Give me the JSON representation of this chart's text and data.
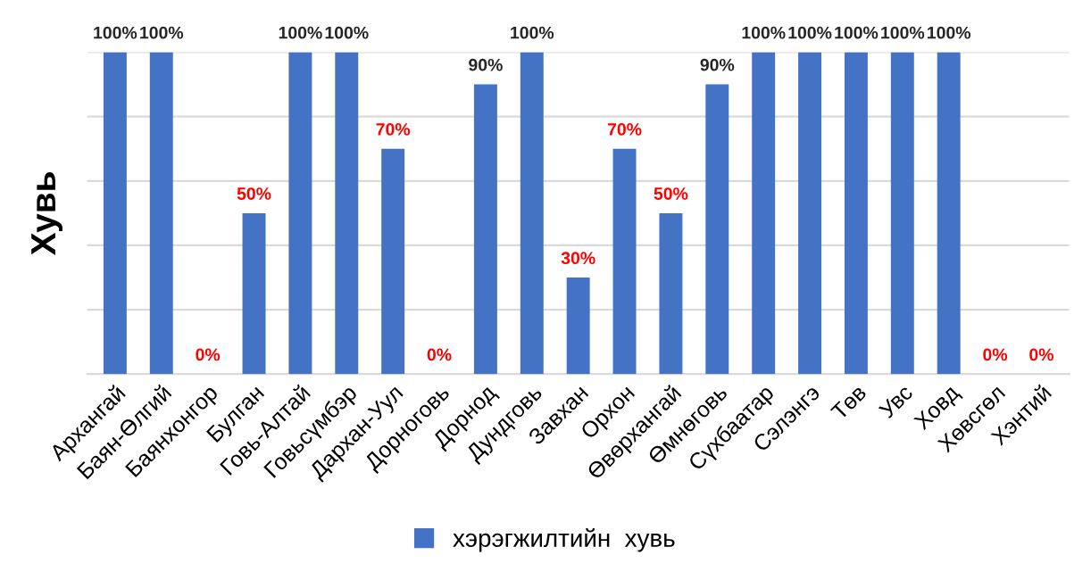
{
  "chart_data": {
    "type": "bar",
    "ylabel": "Хувь",
    "categories": [
      "Архангай",
      "Баян-Өлгий",
      "Баянхонгор",
      "Булган",
      "Говь-Алтай",
      "Говьсүмбэр",
      "Дархан-Уул",
      "Дорноговь",
      "Дорнод",
      "Дундговь",
      "Завхан",
      "Орхон",
      "Өвөрхангай",
      "Өмнөговь",
      "Сүхбаатар",
      "Сэлэнгэ",
      "Төв",
      "Увс",
      "Ховд",
      "Хөвсгөл",
      "Хэнтий"
    ],
    "series": [
      {
        "name": "хэрэгжилтийн  хувь",
        "color": "#4472c4",
        "values": [
          100,
          100,
          0,
          50,
          100,
          100,
          70,
          0,
          90,
          100,
          30,
          70,
          50,
          90,
          100,
          100,
          100,
          100,
          100,
          0,
          0
        ],
        "value_labels": [
          "100%",
          "100%",
          "0%",
          "50%",
          "100%",
          "100%",
          "70%",
          "0%",
          "90%",
          "100%",
          "30%",
          "70%",
          "50%",
          "90%",
          "100%",
          "100%",
          "100%",
          "100%",
          "100%",
          "0%",
          "0%"
        ]
      }
    ],
    "ylim": [
      0,
      100
    ],
    "yticks": [
      {
        "value": 0,
        "label": null
      },
      {
        "value": 20,
        "label": null
      },
      {
        "value": 40,
        "label": null
      },
      {
        "value": 60,
        "label": null
      },
      {
        "value": 80,
        "label": null
      },
      {
        "value": 100,
        "label": null
      }
    ],
    "tick_labels": "x",
    "grid": "y",
    "legend": "bottom"
  }
}
